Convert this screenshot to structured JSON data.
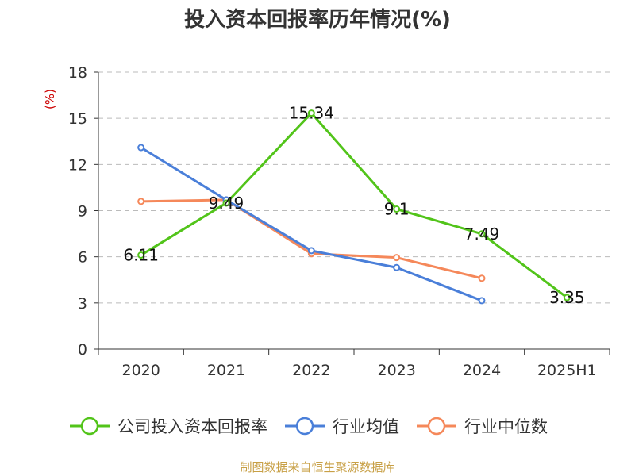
{
  "chart_data": {
    "type": "line",
    "title": "投入资本回报率历年情况(%)",
    "unit_label": "(%)",
    "categories": [
      "2020",
      "2021",
      "2022",
      "2023",
      "2024",
      "2025H1"
    ],
    "ylim": [
      0,
      18
    ],
    "yticks": [
      0,
      3,
      6,
      9,
      12,
      15,
      18
    ],
    "grid": true,
    "legend_position": "bottom",
    "series": [
      {
        "name": "公司投入资本回报率",
        "color": "#52c41a",
        "values": [
          6.11,
          9.49,
          15.34,
          9.1,
          7.49,
          3.35
        ],
        "labels": [
          "6.11",
          "9.49",
          "15.34",
          "9.1",
          "7.49",
          "3.35"
        ]
      },
      {
        "name": "行业均值",
        "color": "#4a7fd9",
        "values": [
          13.1,
          9.7,
          6.4,
          5.3,
          3.15,
          null
        ]
      },
      {
        "name": "行业中位数",
        "color": "#f5885a",
        "values": [
          9.6,
          9.7,
          6.2,
          5.95,
          4.6,
          null
        ]
      }
    ]
  },
  "source": "制图数据来自恒生聚源数据库"
}
